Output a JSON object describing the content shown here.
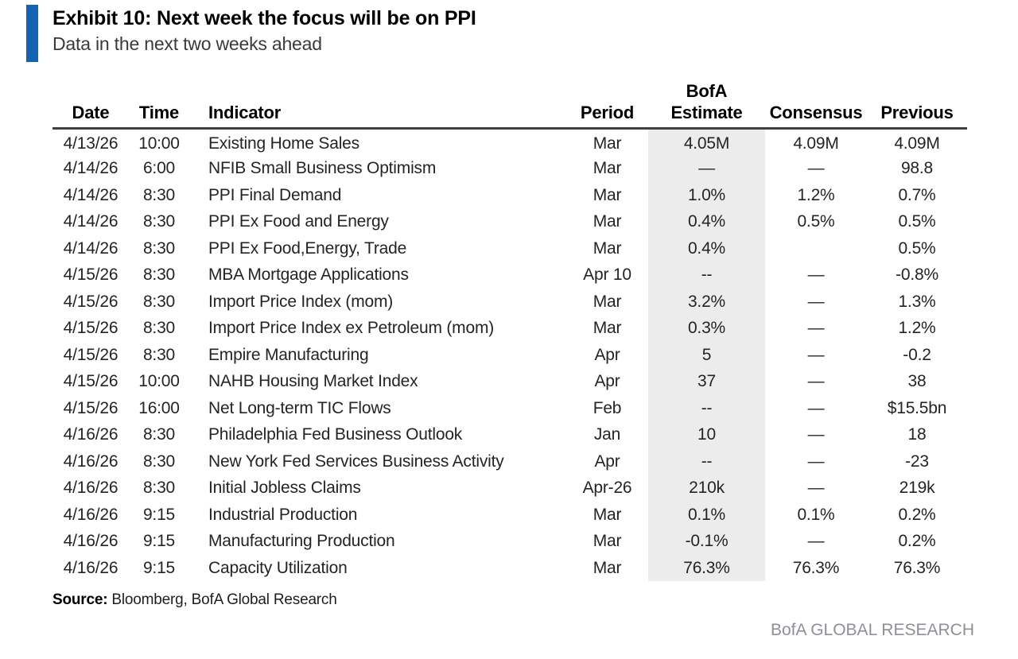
{
  "colors": {
    "accent": "#1264B2",
    "estimate_column_highlight": "#ECECEC",
    "watermark_text": "#8F8F97"
  },
  "header": {
    "exhibit_title": "Exhibit 10: Next week the focus will be on PPI",
    "subtitle": "Data in the next two weeks ahead"
  },
  "table": {
    "columns": [
      {
        "key": "date",
        "line1": "",
        "line2": "Date"
      },
      {
        "key": "time",
        "line1": "",
        "line2": "Time"
      },
      {
        "key": "indicator",
        "line1": "",
        "line2": "Indicator"
      },
      {
        "key": "period",
        "line1": "",
        "line2": "Period"
      },
      {
        "key": "estimate",
        "line1": "BofA",
        "line2": "Estimate"
      },
      {
        "key": "consensus",
        "line1": "",
        "line2": "Consensus"
      },
      {
        "key": "previous",
        "line1": "",
        "line2": "Previous"
      }
    ],
    "rows": [
      [
        "4/13/26",
        "10:00",
        "Existing Home Sales",
        "Mar",
        "4.05M",
        "4.09M",
        "4.09M"
      ],
      [
        "4/14/26",
        "6:00",
        "NFIB Small Business Optimism",
        "Mar",
        "—",
        "—",
        "98.8"
      ],
      [
        "4/14/26",
        "8:30",
        "PPI Final Demand",
        "Mar",
        "1.0%",
        "1.2%",
        "0.7%"
      ],
      [
        "4/14/26",
        "8:30",
        "PPI Ex Food and Energy",
        "Mar",
        "0.4%",
        "0.5%",
        "0.5%"
      ],
      [
        "4/14/26",
        "8:30",
        "PPI Ex Food,Energy, Trade",
        "Mar",
        "0.4%",
        "",
        "0.5%"
      ],
      [
        "4/15/26",
        "8:30",
        "MBA Mortgage Applications",
        "Apr 10",
        "--",
        "—",
        "-0.8%"
      ],
      [
        "4/15/26",
        "8:30",
        "Import Price Index (mom)",
        "Mar",
        "3.2%",
        "—",
        "1.3%"
      ],
      [
        "4/15/26",
        "8:30",
        "Import Price Index ex Petroleum (mom)",
        "Mar",
        "0.3%",
        "—",
        "1.2%"
      ],
      [
        "4/15/26",
        "8:30",
        "Empire Manufacturing",
        "Apr",
        "5",
        "—",
        "-0.2"
      ],
      [
        "4/15/26",
        "10:00",
        "NAHB Housing Market Index",
        "Apr",
        "37",
        "—",
        "38"
      ],
      [
        "4/15/26",
        "16:00",
        "Net Long-term TIC Flows",
        "Feb",
        "--",
        "—",
        "$15.5bn"
      ],
      [
        "4/16/26",
        "8:30",
        "Philadelphia Fed Business Outlook",
        "Jan",
        "10",
        "—",
        "18"
      ],
      [
        "4/16/26",
        "8:30",
        "New York Fed Services Business Activity",
        "Apr",
        "--",
        "—",
        "-23"
      ],
      [
        "4/16/26",
        "8:30",
        "Initial Jobless Claims",
        "Apr-26",
        "210k",
        "—",
        "219k"
      ],
      [
        "4/16/26",
        "9:15",
        "Industrial Production",
        "Mar",
        "0.1%",
        "0.1%",
        "0.2%"
      ],
      [
        "4/16/26",
        "9:15",
        "Manufacturing Production",
        "Mar",
        "-0.1%",
        "—",
        "0.2%"
      ],
      [
        "4/16/26",
        "9:15",
        "Capacity Utilization",
        "Mar",
        "76.3%",
        "76.3%",
        "76.3%"
      ]
    ]
  },
  "footer": {
    "source_label": "Source:",
    "source_text": " Bloomberg, BofA Global Research",
    "watermark": "BofA GLOBAL RESEARCH"
  }
}
